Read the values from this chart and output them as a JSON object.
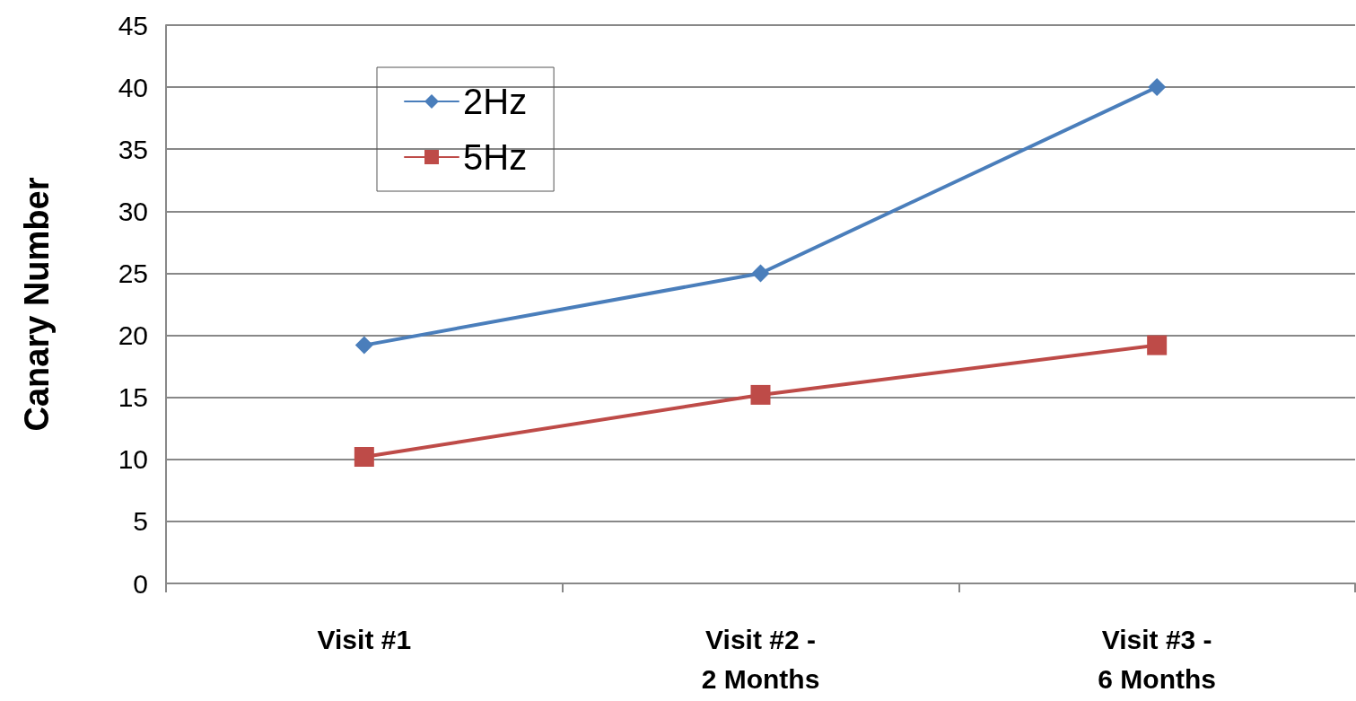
{
  "chart_data": {
    "type": "line",
    "ylabel": "Canary Number",
    "categories": [
      "Visit #1",
      "Visit #2 - 2 Months",
      "Visit #3 - 6 Months"
    ],
    "series": [
      {
        "name": "2Hz",
        "color": "#4a7ebb",
        "marker": "diamond",
        "values": [
          19.2,
          25,
          40
        ]
      },
      {
        "name": "5Hz",
        "color": "#be4b48",
        "marker": "square",
        "values": [
          10.2,
          15.2,
          19.2
        ]
      }
    ],
    "ylim": [
      0,
      45
    ],
    "yticks": [
      0,
      5,
      10,
      15,
      20,
      25,
      30,
      35,
      40,
      45
    ],
    "grid": "y",
    "legend": "top left",
    "line_style": "solid"
  }
}
